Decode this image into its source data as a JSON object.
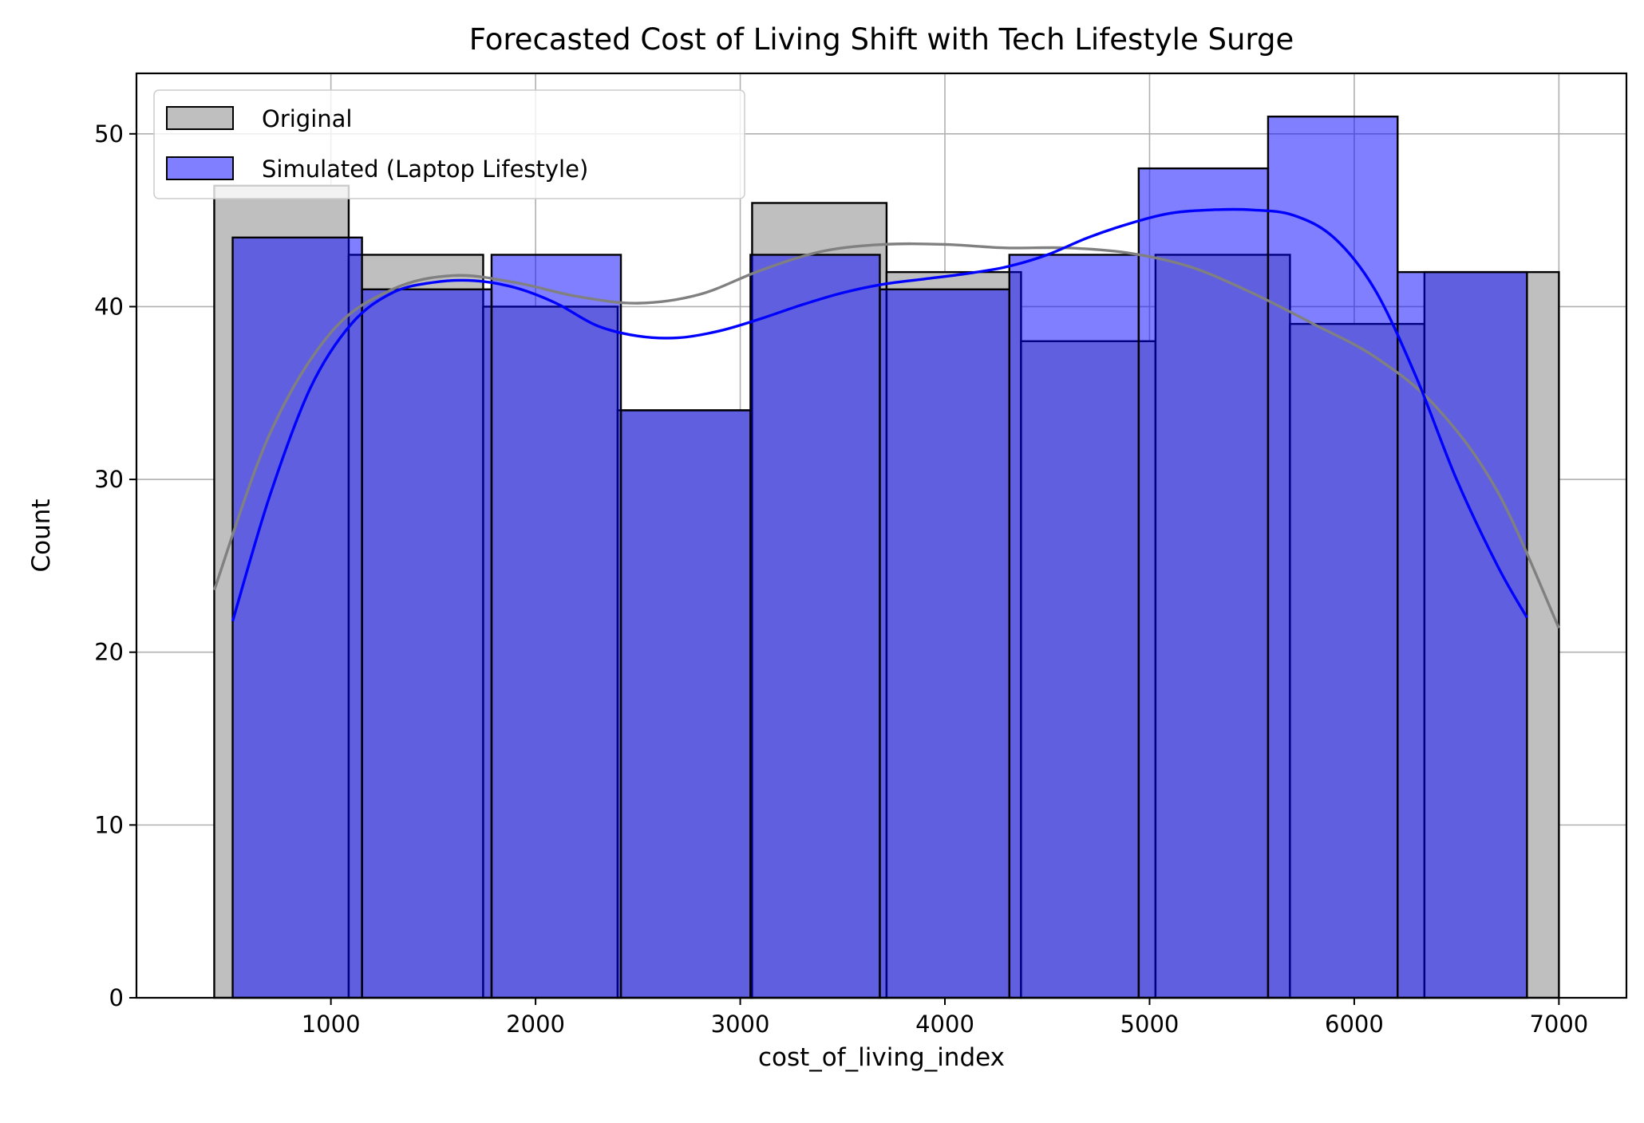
{
  "chart_data": {
    "type": "histogram",
    "title": "Forecasted Cost of Living Shift with Tech Lifestyle Surge",
    "xlabel": "cost_of_living_index",
    "ylabel": "Count",
    "xlim": [
      50,
      7330
    ],
    "ylim": [
      0,
      53.5
    ],
    "xticks": [
      1000,
      2000,
      3000,
      4000,
      5000,
      6000,
      7000
    ],
    "yticks": [
      0,
      10,
      20,
      30,
      40,
      50
    ],
    "grid": true,
    "legend_position": "upper-left",
    "series": [
      {
        "name": "Original",
        "color": "#bfbfbf",
        "kde_color": "#808080",
        "bin_edges": [
          430,
          1087,
          1744,
          2401,
          3058,
          3715,
          4372,
          5029,
          5686,
          6343,
          7000
        ],
        "values": [
          47,
          43,
          40,
          34,
          46,
          42,
          38,
          43,
          39,
          42
        ],
        "kde": {
          "x": [
            430,
            700,
            1000,
            1300,
            1600,
            1900,
            2200,
            2500,
            2800,
            3100,
            3400,
            3700,
            4000,
            4300,
            4600,
            4900,
            5200,
            5500,
            5800,
            6100,
            6400,
            6700,
            7000
          ],
          "y": [
            23.6,
            32.6,
            38.5,
            41.0,
            41.8,
            41.4,
            40.6,
            40.2,
            40.7,
            42.1,
            43.2,
            43.6,
            43.6,
            43.4,
            43.4,
            43.1,
            42.3,
            40.8,
            39.0,
            37.1,
            34.2,
            29.3,
            21.4
          ]
        }
      },
      {
        "name": "Simulated (Laptop Lifestyle)",
        "color": "#0000ff",
        "kde_color": "#0000ff",
        "bin_edges": [
          520,
          1152,
          1785,
          2417,
          3050,
          3682,
          4315,
          4947,
          5579,
          6212,
          6844
        ],
        "values": [
          44,
          41,
          43,
          34,
          43,
          41,
          43,
          48,
          51,
          42
        ],
        "kde": {
          "x": [
            520,
            700,
            900,
            1100,
            1300,
            1500,
            1700,
            1900,
            2100,
            2300,
            2500,
            2700,
            2900,
            3100,
            3300,
            3500,
            3700,
            3900,
            4100,
            4300,
            4500,
            4700,
            4900,
            5100,
            5300,
            5500,
            5700,
            5900,
            6100,
            6300,
            6500,
            6700,
            6844
          ],
          "y": [
            21.8,
            29.0,
            35.3,
            39.0,
            40.8,
            41.4,
            41.5,
            41.1,
            40.2,
            38.9,
            38.3,
            38.2,
            38.6,
            39.3,
            40.1,
            40.8,
            41.3,
            41.6,
            41.9,
            42.3,
            43.0,
            44.0,
            44.8,
            45.4,
            45.6,
            45.6,
            45.3,
            44.0,
            41.0,
            36.0,
            30.0,
            25.0,
            22.0
          ]
        }
      }
    ]
  }
}
